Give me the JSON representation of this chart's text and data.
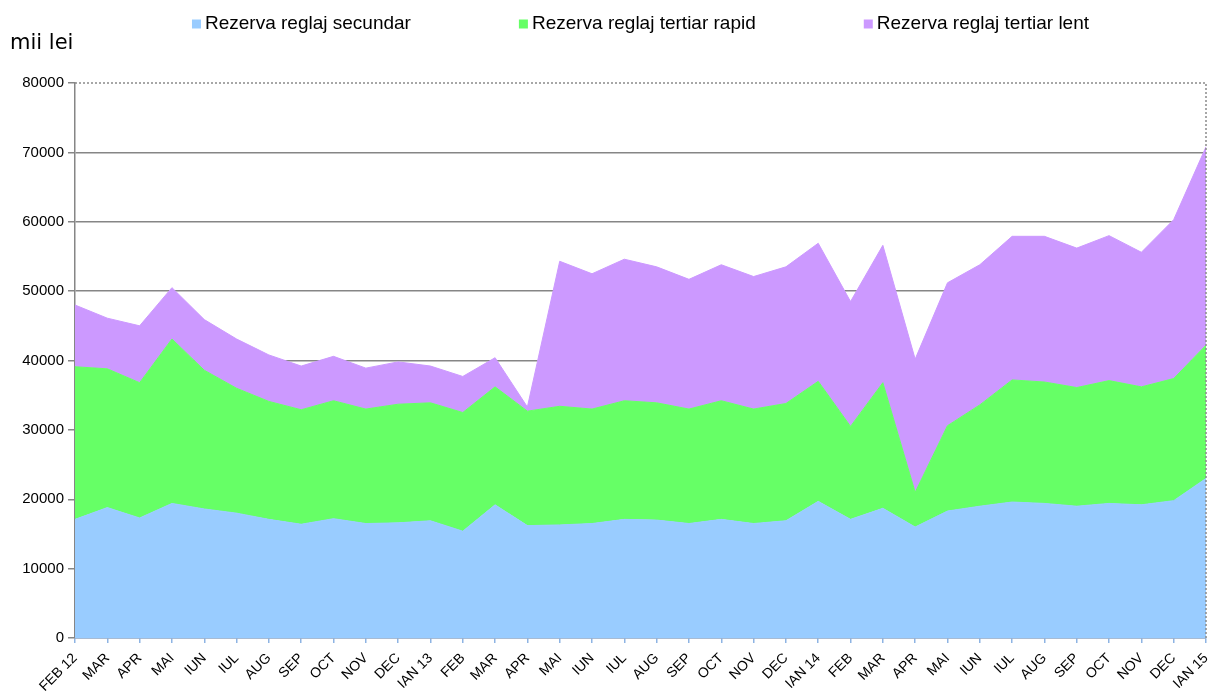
{
  "chart_data": {
    "type": "area",
    "ylabel": "mii lei",
    "stacked": true,
    "grid": "y",
    "legend": "top",
    "categories": [
      "FEB 12",
      "MAR",
      "APR",
      "MAI",
      "IUN",
      "IUL",
      "AUG",
      "SEP",
      "OCT",
      "NOV",
      "DEC",
      "IAN 13",
      "FEB",
      "MAR",
      "APR",
      "MAI",
      "IUN",
      "IUL",
      "AUG",
      "SEP",
      "OCT",
      "NOV",
      "DEC",
      "IAN 14",
      "FEB",
      "MAR",
      "APR",
      "MAI",
      "IUN",
      "IUL",
      "AUG",
      "SEP",
      "OCT",
      "NOV",
      "DEC",
      "IAN 15"
    ],
    "ylim": [
      0,
      80000
    ],
    "yticks": [
      0,
      10000,
      20000,
      30000,
      40000,
      50000,
      60000,
      70000,
      80000
    ],
    "series": [
      {
        "name": "Rezerva reglaj secundar",
        "color": "#99ccff",
        "values": [
          17100,
          18800,
          17300,
          19400,
          18600,
          18000,
          17100,
          16400,
          17200,
          16500,
          16600,
          16900,
          15400,
          19200,
          16200,
          16300,
          16500,
          17100,
          17000,
          16500,
          17100,
          16500,
          16900,
          19700,
          17100,
          18700,
          16000,
          18300,
          19000,
          19600,
          19400,
          19000,
          19400,
          19200,
          19800,
          23000
        ]
      },
      {
        "name": "Rezerva reglaj tertiar rapid",
        "color": "#66ff66",
        "values": [
          22000,
          20000,
          19500,
          23700,
          20000,
          18000,
          17000,
          16500,
          17000,
          16500,
          17100,
          17000,
          17100,
          17000,
          16500,
          17100,
          16500,
          17100,
          16900,
          16500,
          17100,
          16500,
          16900,
          17300,
          13400,
          18100,
          5000,
          12300,
          14600,
          17600,
          17500,
          17100,
          17700,
          17000,
          17600,
          19200
        ]
      },
      {
        "name": "Rezerva reglaj tertiar lent",
        "color": "#cc99ff",
        "values": [
          8900,
          7300,
          8200,
          7400,
          7300,
          7100,
          6700,
          6300,
          6400,
          5900,
          6100,
          5300,
          5200,
          4200,
          600,
          20900,
          19500,
          20400,
          19600,
          18700,
          19600,
          19100,
          19700,
          19900,
          18000,
          19800,
          19200,
          20600,
          20200,
          20700,
          21000,
          20100,
          20900,
          19400,
          22900,
          28600
        ]
      }
    ]
  }
}
